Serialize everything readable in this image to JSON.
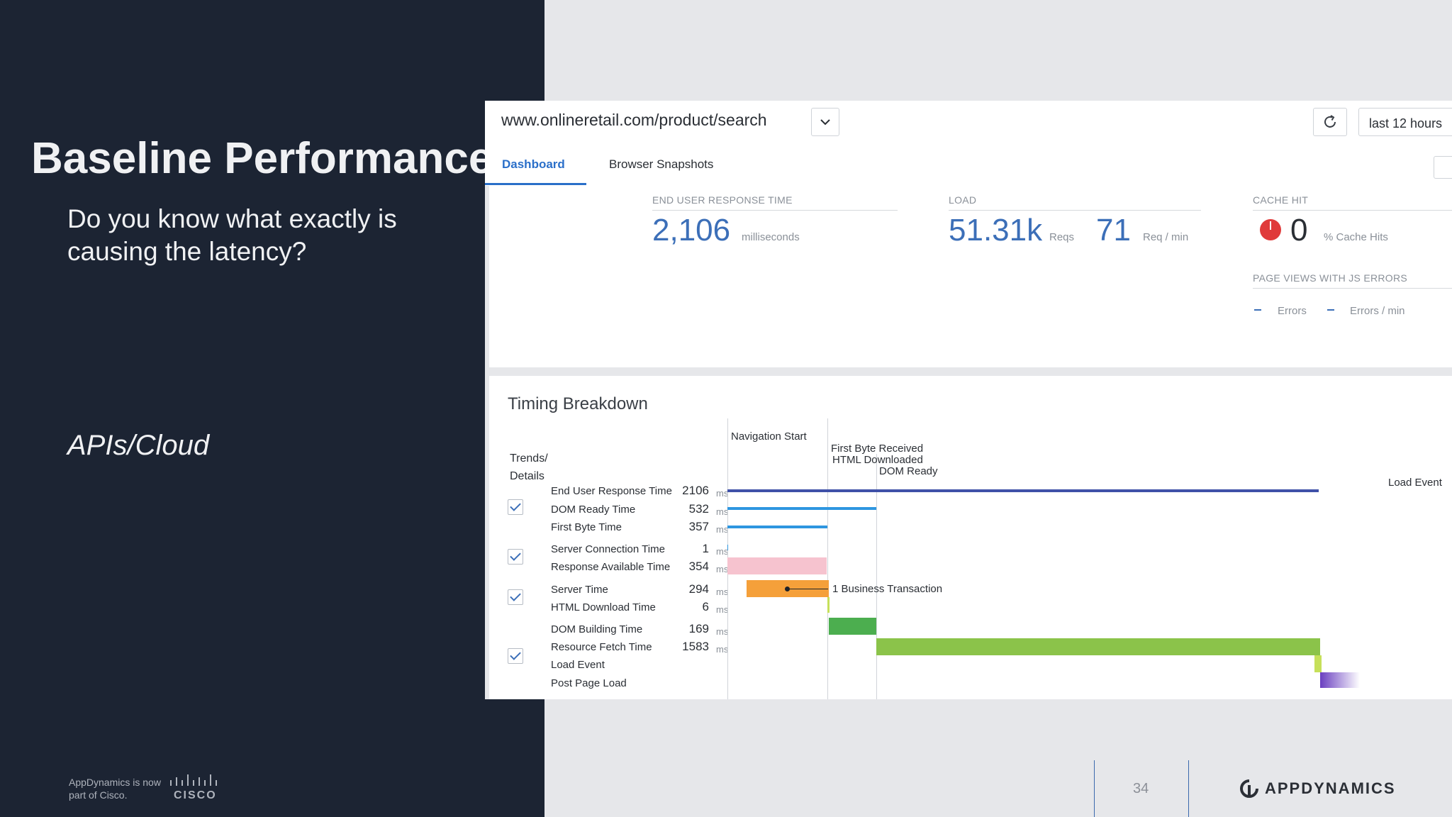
{
  "slide": {
    "title": "Baseline Performance",
    "subtitle": "Do you know what exactly is causing the latency?",
    "tag": "APIs/Cloud",
    "footer_note": "AppDynamics is now part of Cisco.",
    "cisco_word": "CISCO",
    "page_number": "34",
    "brand": "APPDYNAMICS"
  },
  "app": {
    "url": "www.onlineretail.com/product/search",
    "time_range": "last 12 hours",
    "tabs": [
      {
        "label": "Dashboard",
        "active": true
      },
      {
        "label": "Browser Snapshots",
        "active": false
      }
    ],
    "metrics": {
      "response": {
        "label": "END USER RESPONSE TIME",
        "value": "2,106",
        "unit": "milliseconds"
      },
      "load": {
        "label": "LOAD",
        "reqs": "51.31k",
        "reqs_unit": "Reqs",
        "rate": "71",
        "rate_unit": "Req / min"
      },
      "cache": {
        "label": "CACHE HIT",
        "value": "0",
        "unit": "% Cache Hits"
      },
      "js_errors": {
        "label": "PAGE VIEWS WITH JS ERRORS",
        "errors": "-",
        "errors_unit": "Errors",
        "rate": "-",
        "rate_unit": "Errors / min"
      }
    },
    "timing": {
      "title": "Timing Breakdown",
      "trends_label": "Trends/ Details",
      "unit": "ms",
      "markers": {
        "navigation_start": "Navigation Start",
        "first_byte": "First Byte Received",
        "html_downloaded": "HTML Downloaded",
        "dom_ready": "DOM Ready",
        "load_event": "Load Event"
      },
      "annotation": "1 Business Transaction",
      "rows": [
        {
          "label": "End User Response Time",
          "value": "2106"
        },
        {
          "label": "DOM Ready Time",
          "value": "532"
        },
        {
          "label": "First Byte Time",
          "value": "357"
        },
        {
          "label": "Server Connection Time",
          "value": "1"
        },
        {
          "label": "Response Available Time",
          "value": "354"
        },
        {
          "label": "Server Time",
          "value": "294"
        },
        {
          "label": "HTML Download Time",
          "value": "6"
        },
        {
          "label": "DOM Building Time",
          "value": "169"
        },
        {
          "label": "Resource Fetch Time",
          "value": "1583"
        },
        {
          "label": "Load Event",
          "value": ""
        },
        {
          "label": "Post Page Load",
          "value": ""
        }
      ],
      "colors": {
        "response": "#3f51a8",
        "dom_ready": "#2e96e0",
        "first_byte": "#2e96e0",
        "response_available": "#f6c3cf",
        "server": "#f5a03a",
        "dom_building": "#4cae4f",
        "resource_fetch": "#8bc34a",
        "load_event": "#c6e05a",
        "post_page_load": "#6a3fc0"
      }
    }
  }
}
